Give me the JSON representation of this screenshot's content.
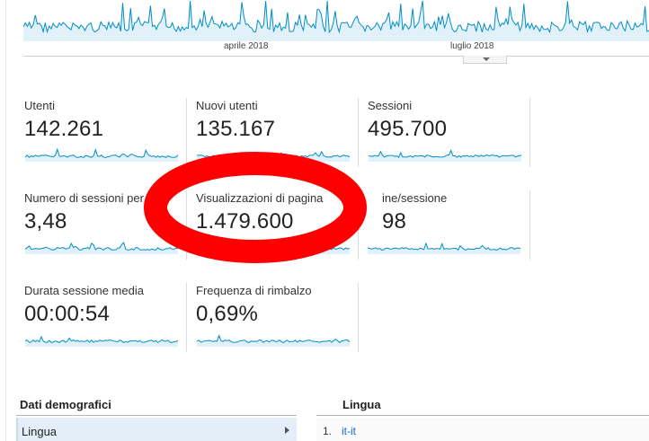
{
  "overview": {
    "axis_labels": [
      "aprile 2018",
      "luglio 2018"
    ],
    "color": "#058dc7",
    "fill": "#e1f1f9"
  },
  "metrics": [
    {
      "label": "Utenti",
      "value": "142.261"
    },
    {
      "label": "Nuovi utenti",
      "value": "135.167"
    },
    {
      "label": "Sessioni",
      "value": "495.700"
    },
    {
      "label": "Numero di sessioni per",
      "value": "3,48"
    },
    {
      "label": "Visualizzazioni di pagina",
      "value": "1.479.600"
    },
    {
      "label": "ine/sessione",
      "value": "98"
    },
    {
      "label": "Durata sessione media",
      "value": "00:00:54"
    },
    {
      "label": "Frequenza di rimbalzo",
      "value": "0,69%"
    }
  ],
  "annotation": {
    "color": "#ff0000"
  },
  "demographics": {
    "title": "Dati demografici",
    "selected_item": "Lingua"
  },
  "language_table": {
    "title": "Lingua",
    "rows": [
      {
        "rank": "1.",
        "value": "it-it"
      }
    ]
  }
}
